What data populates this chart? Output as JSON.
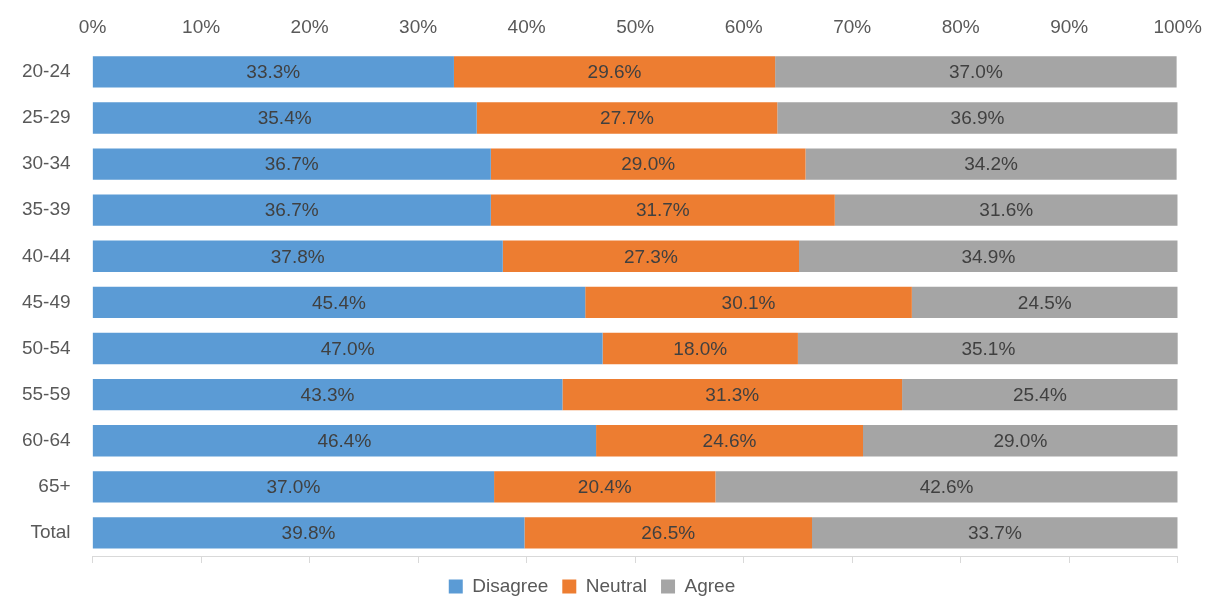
{
  "chart_data": {
    "type": "bar",
    "orientation": "horizontal",
    "stacked": true,
    "legend": "bottom",
    "grid": false,
    "categories": [
      "20-24",
      "25-29",
      "30-34",
      "35-39",
      "40-44",
      "45-49",
      "50-54",
      "55-59",
      "60-64",
      "65+",
      "Total"
    ],
    "xlim": [
      0,
      100
    ],
    "xticks": [
      {
        "value": 0,
        "label": "0%"
      },
      {
        "value": 10,
        "label": "10%"
      },
      {
        "value": 20,
        "label": "20%"
      },
      {
        "value": 30,
        "label": "30%"
      },
      {
        "value": 40,
        "label": "40%"
      },
      {
        "value": 50,
        "label": "50%"
      },
      {
        "value": 60,
        "label": "60%"
      },
      {
        "value": 70,
        "label": "70%"
      },
      {
        "value": 80,
        "label": "80%"
      },
      {
        "value": 90,
        "label": "90%"
      },
      {
        "value": 100,
        "label": "100%"
      }
    ],
    "series": [
      {
        "name": "Disagree",
        "color": "#5b9bd5",
        "values": [
          33.3,
          35.4,
          36.7,
          36.7,
          37.8,
          45.4,
          47.0,
          43.3,
          46.4,
          37.0,
          39.8
        ],
        "value_labels": [
          "33.3%",
          "35.4%",
          "36.7%",
          "36.7%",
          "37.8%",
          "45.4%",
          "47.0%",
          "43.3%",
          "46.4%",
          "37.0%",
          "39.8%"
        ]
      },
      {
        "name": "Neutral",
        "color": "#ed7d31",
        "values": [
          29.6,
          27.7,
          29.0,
          31.7,
          27.3,
          30.1,
          18.0,
          31.3,
          24.6,
          20.4,
          26.5
        ],
        "value_labels": [
          "29.6%",
          "27.7%",
          "29.0%",
          "31.7%",
          "27.3%",
          "30.1%",
          "18.0%",
          "31.3%",
          "24.6%",
          "20.4%",
          "26.5%"
        ]
      },
      {
        "name": "Agree",
        "color": "#a5a5a5",
        "values": [
          37.0,
          36.9,
          34.2,
          31.6,
          34.9,
          24.5,
          35.1,
          25.4,
          29.0,
          42.6,
          33.7
        ],
        "value_labels": [
          "37.0%",
          "36.9%",
          "34.2%",
          "31.6%",
          "34.9%",
          "24.5%",
          "35.1%",
          "25.4%",
          "29.0%",
          "42.6%",
          "33.7%"
        ]
      }
    ]
  }
}
